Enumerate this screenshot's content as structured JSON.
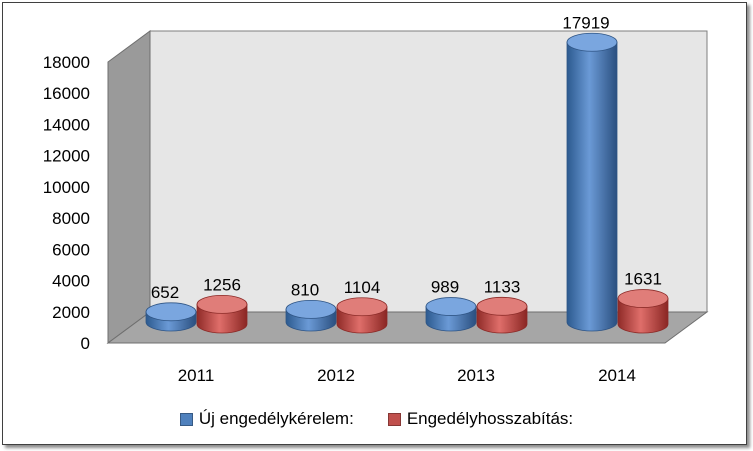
{
  "chart_data": {
    "type": "bar",
    "title": "",
    "xlabel": "",
    "ylabel": "",
    "categories": [
      "2011",
      "2012",
      "2013",
      "2014"
    ],
    "series": [
      {
        "name": "Új engedélykérelem:",
        "values": [
          652,
          810,
          989,
          17919
        ],
        "color": "#4F81BD"
      },
      {
        "name": "Engedélyhosszabítás:",
        "values": [
          1256,
          1104,
          1133,
          1631
        ],
        "color": "#C0504D"
      }
    ],
    "ylim": [
      0,
      18000
    ],
    "yticks": [
      0,
      2000,
      4000,
      6000,
      8000,
      10000,
      12000,
      14000,
      16000,
      18000
    ],
    "grid": false,
    "legend": "bottom",
    "style": "3d-cylinder"
  },
  "legend": {
    "items": [
      {
        "label": "Új engedélykérelem:",
        "color": "#4F81BD"
      },
      {
        "label": "Engedélyhosszabítás:",
        "color": "#C0504D"
      }
    ]
  }
}
